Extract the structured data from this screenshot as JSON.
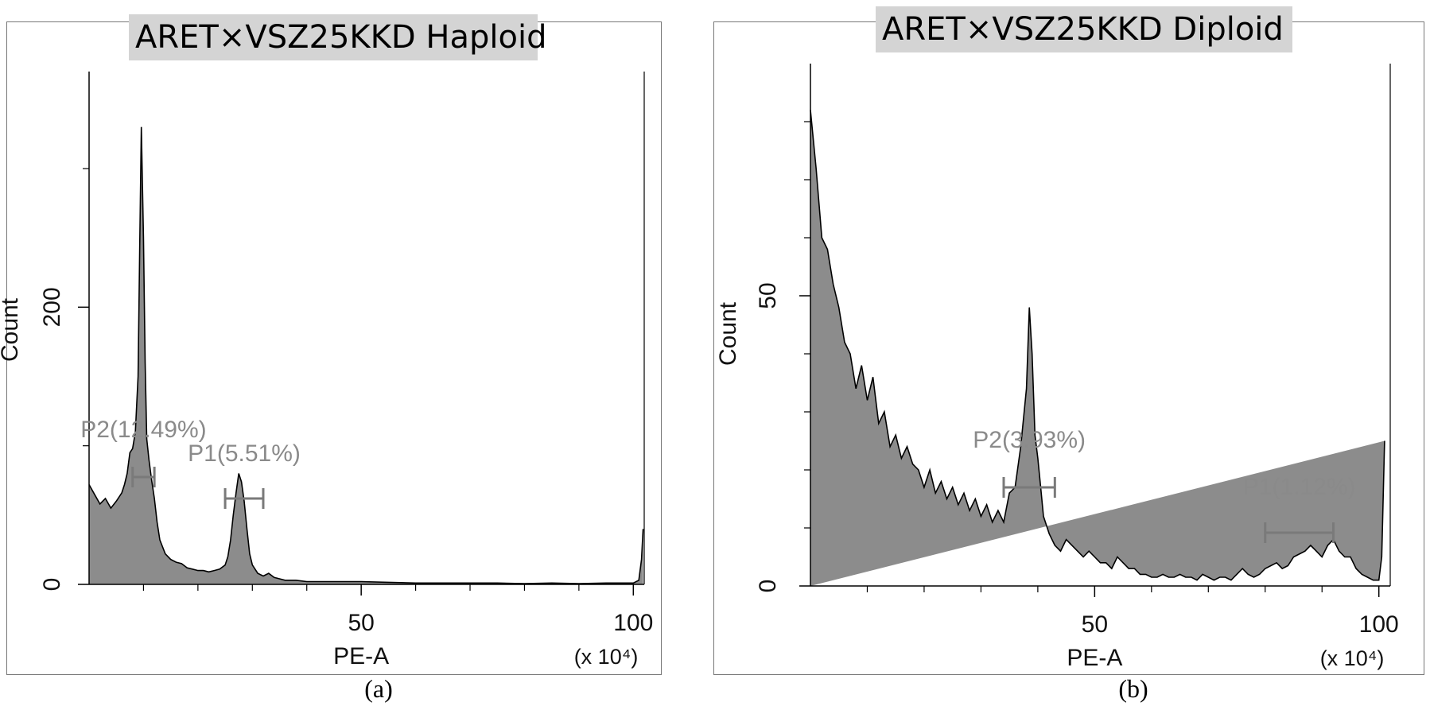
{
  "colors": {
    "fill": "#8c8c8c",
    "outline": "#000000",
    "gate": "#7a7a7a",
    "gate_label": "#8a8a8a",
    "tick_label": "#111111"
  },
  "panels": {
    "a": {
      "title": "ARET×VSZ25KKD Haploid",
      "caption": "(a)"
    },
    "b": {
      "title": "ARET×VSZ25KKD Diploid",
      "caption": "(b)"
    }
  },
  "chart_data": [
    {
      "type": "histogram",
      "title": "ARET×VSZ25KKD Haploid",
      "xlabel": "PE-A",
      "xunit": "(x 10⁴)",
      "ylabel": "Count",
      "xlim": [
        0,
        102
      ],
      "ylim": [
        0,
        370
      ],
      "x_ticks": [
        "50",
        "100"
      ],
      "y_ticks": [
        "0",
        "200"
      ],
      "gates": [
        {
          "label": "P2(12.49%)",
          "start": 8,
          "end": 12
        },
        {
          "label": "P1(5.51%)",
          "start": 25,
          "end": 32
        }
      ],
      "x": [
        0,
        1,
        2,
        3,
        4,
        5,
        6,
        6.5,
        7,
        7.5,
        8,
        8.5,
        9,
        9.3,
        9.6,
        10,
        10.3,
        10.6,
        11,
        11.5,
        12,
        12.5,
        13,
        14,
        15,
        16,
        17,
        18,
        19,
        20,
        21,
        22,
        23,
        24,
        25,
        25.5,
        26,
        26.5,
        27,
        27.5,
        28,
        28.5,
        29,
        29.5,
        30,
        31,
        32,
        33,
        34,
        35,
        36,
        38,
        40,
        45,
        50,
        55,
        60,
        65,
        70,
        75,
        80,
        85,
        90,
        95,
        100,
        101,
        101.5,
        101.8
      ],
      "y": [
        72,
        65,
        58,
        62,
        55,
        60,
        66,
        72,
        80,
        95,
        98,
        110,
        150,
        240,
        330,
        250,
        160,
        105,
        90,
        75,
        62,
        45,
        32,
        22,
        18,
        16,
        15,
        12,
        11,
        10,
        10,
        9,
        10,
        11,
        14,
        20,
        32,
        50,
        66,
        80,
        74,
        60,
        40,
        22,
        14,
        8,
        6,
        8,
        5,
        4,
        3,
        3,
        2,
        2,
        2,
        1.5,
        1,
        1,
        1,
        1,
        0.5,
        1,
        0.5,
        1,
        1,
        3,
        18,
        40
      ]
    },
    {
      "type": "histogram",
      "title": "ARET×VSZ25KKD Diploid",
      "xlabel": "PE-A",
      "xunit": "(x 10⁴)",
      "ylabel": "Count",
      "xlim": [
        0,
        102
      ],
      "ylim": [
        0,
        90
      ],
      "x_ticks": [
        "50",
        "100"
      ],
      "y_ticks": [
        "0",
        "50"
      ],
      "gates": [
        {
          "label": "P2(3.93%)",
          "start": 34,
          "end": 43
        },
        {
          "label": "P1(1.12%)",
          "start": 80,
          "end": 92
        }
      ],
      "x": [
        0,
        1,
        2,
        3,
        4,
        5,
        6,
        7,
        8,
        9,
        10,
        11,
        12,
        13,
        14,
        15,
        16,
        17,
        18,
        19,
        20,
        21,
        22,
        23,
        24,
        25,
        26,
        27,
        28,
        29,
        30,
        31,
        32,
        33,
        34,
        35,
        36,
        37,
        38,
        38.5,
        39,
        39.5,
        40,
        40.5,
        41,
        42,
        43,
        44,
        45,
        46,
        47,
        48,
        49,
        50,
        51,
        52,
        53,
        54,
        55,
        56,
        57,
        58,
        59,
        60,
        61,
        62,
        63,
        64,
        65,
        66,
        67,
        68,
        69,
        70,
        71,
        72,
        73,
        74,
        75,
        76,
        77,
        78,
        79,
        80,
        81,
        82,
        83,
        84,
        85,
        86,
        87,
        88,
        89,
        90,
        91,
        92,
        93,
        94,
        95,
        96,
        97,
        98,
        99,
        100,
        100.5,
        101,
        101.5
      ],
      "y": [
        82,
        72,
        60,
        58,
        52,
        48,
        42,
        40,
        34,
        38,
        32,
        36,
        28,
        30,
        24,
        26,
        22,
        24,
        21,
        20,
        17,
        20,
        16,
        18,
        15,
        17,
        14,
        16,
        13,
        15,
        12,
        14,
        11,
        13,
        11,
        16,
        17,
        24,
        34,
        48,
        40,
        26,
        22,
        17,
        12,
        9,
        7,
        6,
        8,
        7,
        6,
        5,
        6,
        5,
        4,
        4,
        3,
        5,
        4,
        3,
        3,
        2,
        2,
        1.5,
        1.5,
        2,
        1.5,
        1.5,
        2,
        1.5,
        1.5,
        1,
        2,
        1.5,
        1,
        1.5,
        1.5,
        1,
        2,
        3,
        2,
        1.5,
        2,
        3,
        3.5,
        4,
        3,
        3.5,
        5,
        5.5,
        6,
        7,
        6,
        5,
        7,
        8,
        6,
        5,
        5,
        3,
        2,
        1.5,
        1,
        1,
        5,
        25
      ]
    }
  ]
}
